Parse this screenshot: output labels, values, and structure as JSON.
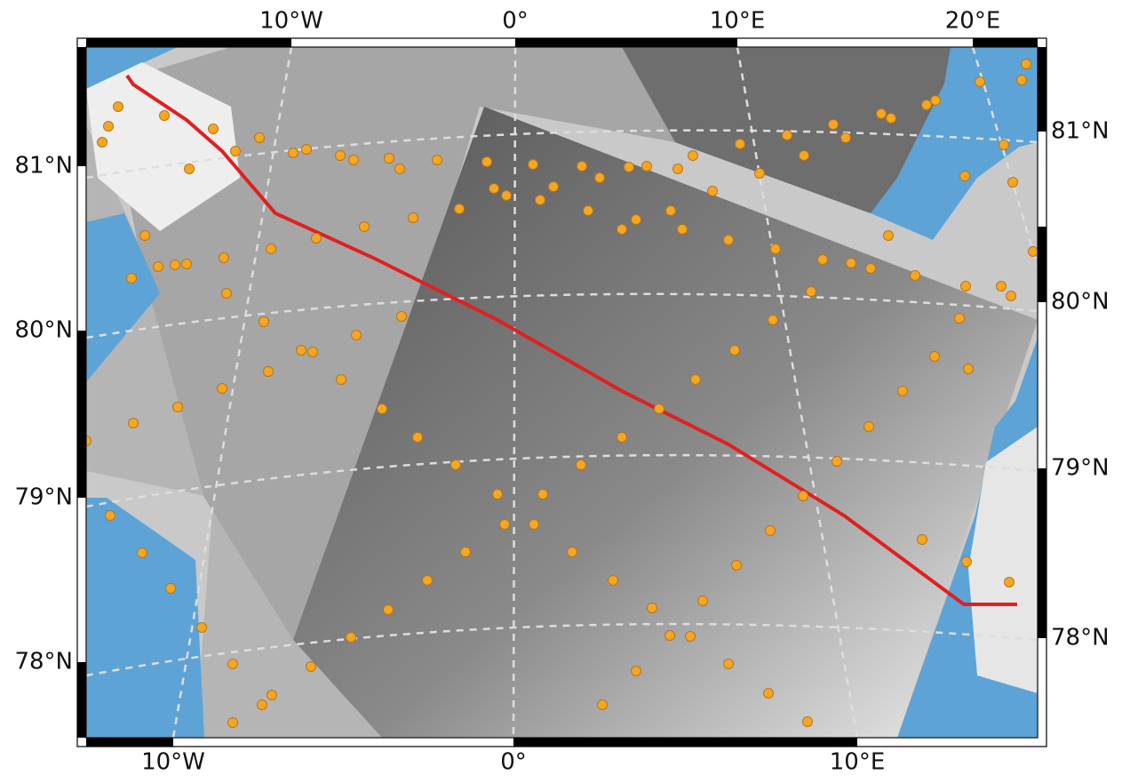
{
  "map": {
    "top_labels": [
      "10°W",
      "0°",
      "10°E",
      "20°E"
    ],
    "bottom_labels": [
      "10°W",
      "0°",
      "10°E"
    ],
    "left_labels": [
      "81°N",
      "80°N",
      "79°N",
      "78°N"
    ],
    "right_labels": [
      "81°N",
      "80°N",
      "79°N",
      "78°N"
    ]
  }
}
